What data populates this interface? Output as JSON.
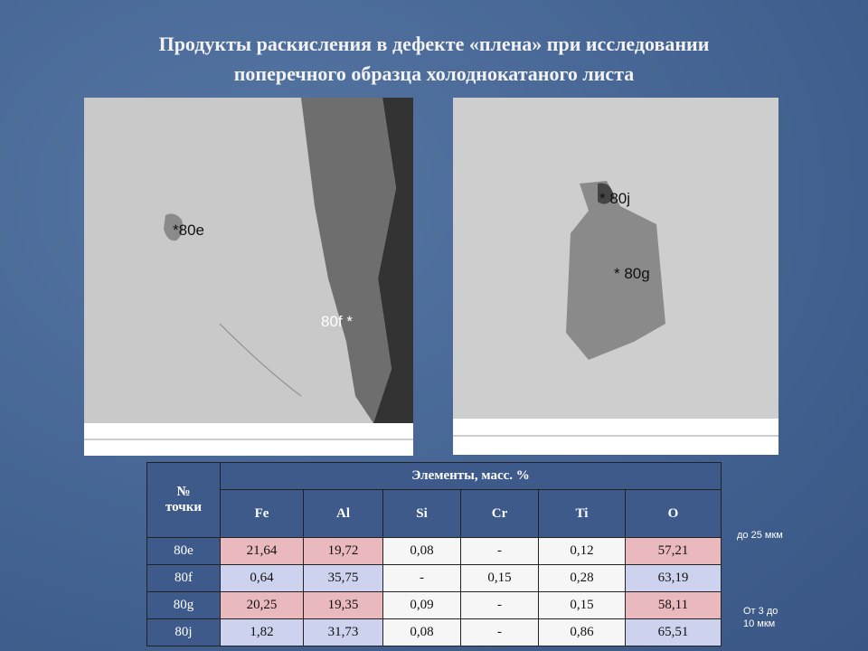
{
  "title": [
    "Продукты раскисления в дефекте «плена» при исследовании",
    "поперечного образца холоднокатаного листа"
  ],
  "images": [
    {
      "labels": [
        "*80e",
        "80f  *"
      ]
    },
    {
      "labels": [
        "*  80j",
        "*  80g"
      ]
    }
  ],
  "table": {
    "header": {
      "point": [
        "№",
        "точки"
      ],
      "group": "Элементы, масс. %",
      "elements": [
        "Fe",
        "Al",
        "Si",
        "Cr",
        "Ti",
        "O"
      ]
    },
    "rows": [
      [
        "80e",
        "21,64",
        "19,72",
        "0,08",
        "-",
        "0,12",
        "57,21"
      ],
      [
        "80f",
        "0,64",
        "35,75",
        "-",
        "0,15",
        "0,28",
        "63,19"
      ],
      [
        "80g",
        "20,25",
        "19,35",
        "0,09",
        "-",
        "0,15",
        "58,11"
      ],
      [
        "80j",
        "1,82",
        "31,73",
        "0,08",
        "-",
        "0,86",
        "65,51"
      ]
    ]
  },
  "notes": [
    [
      "до 25 мкм"
    ],
    [
      "От 3 до",
      "10 мкм"
    ]
  ]
}
